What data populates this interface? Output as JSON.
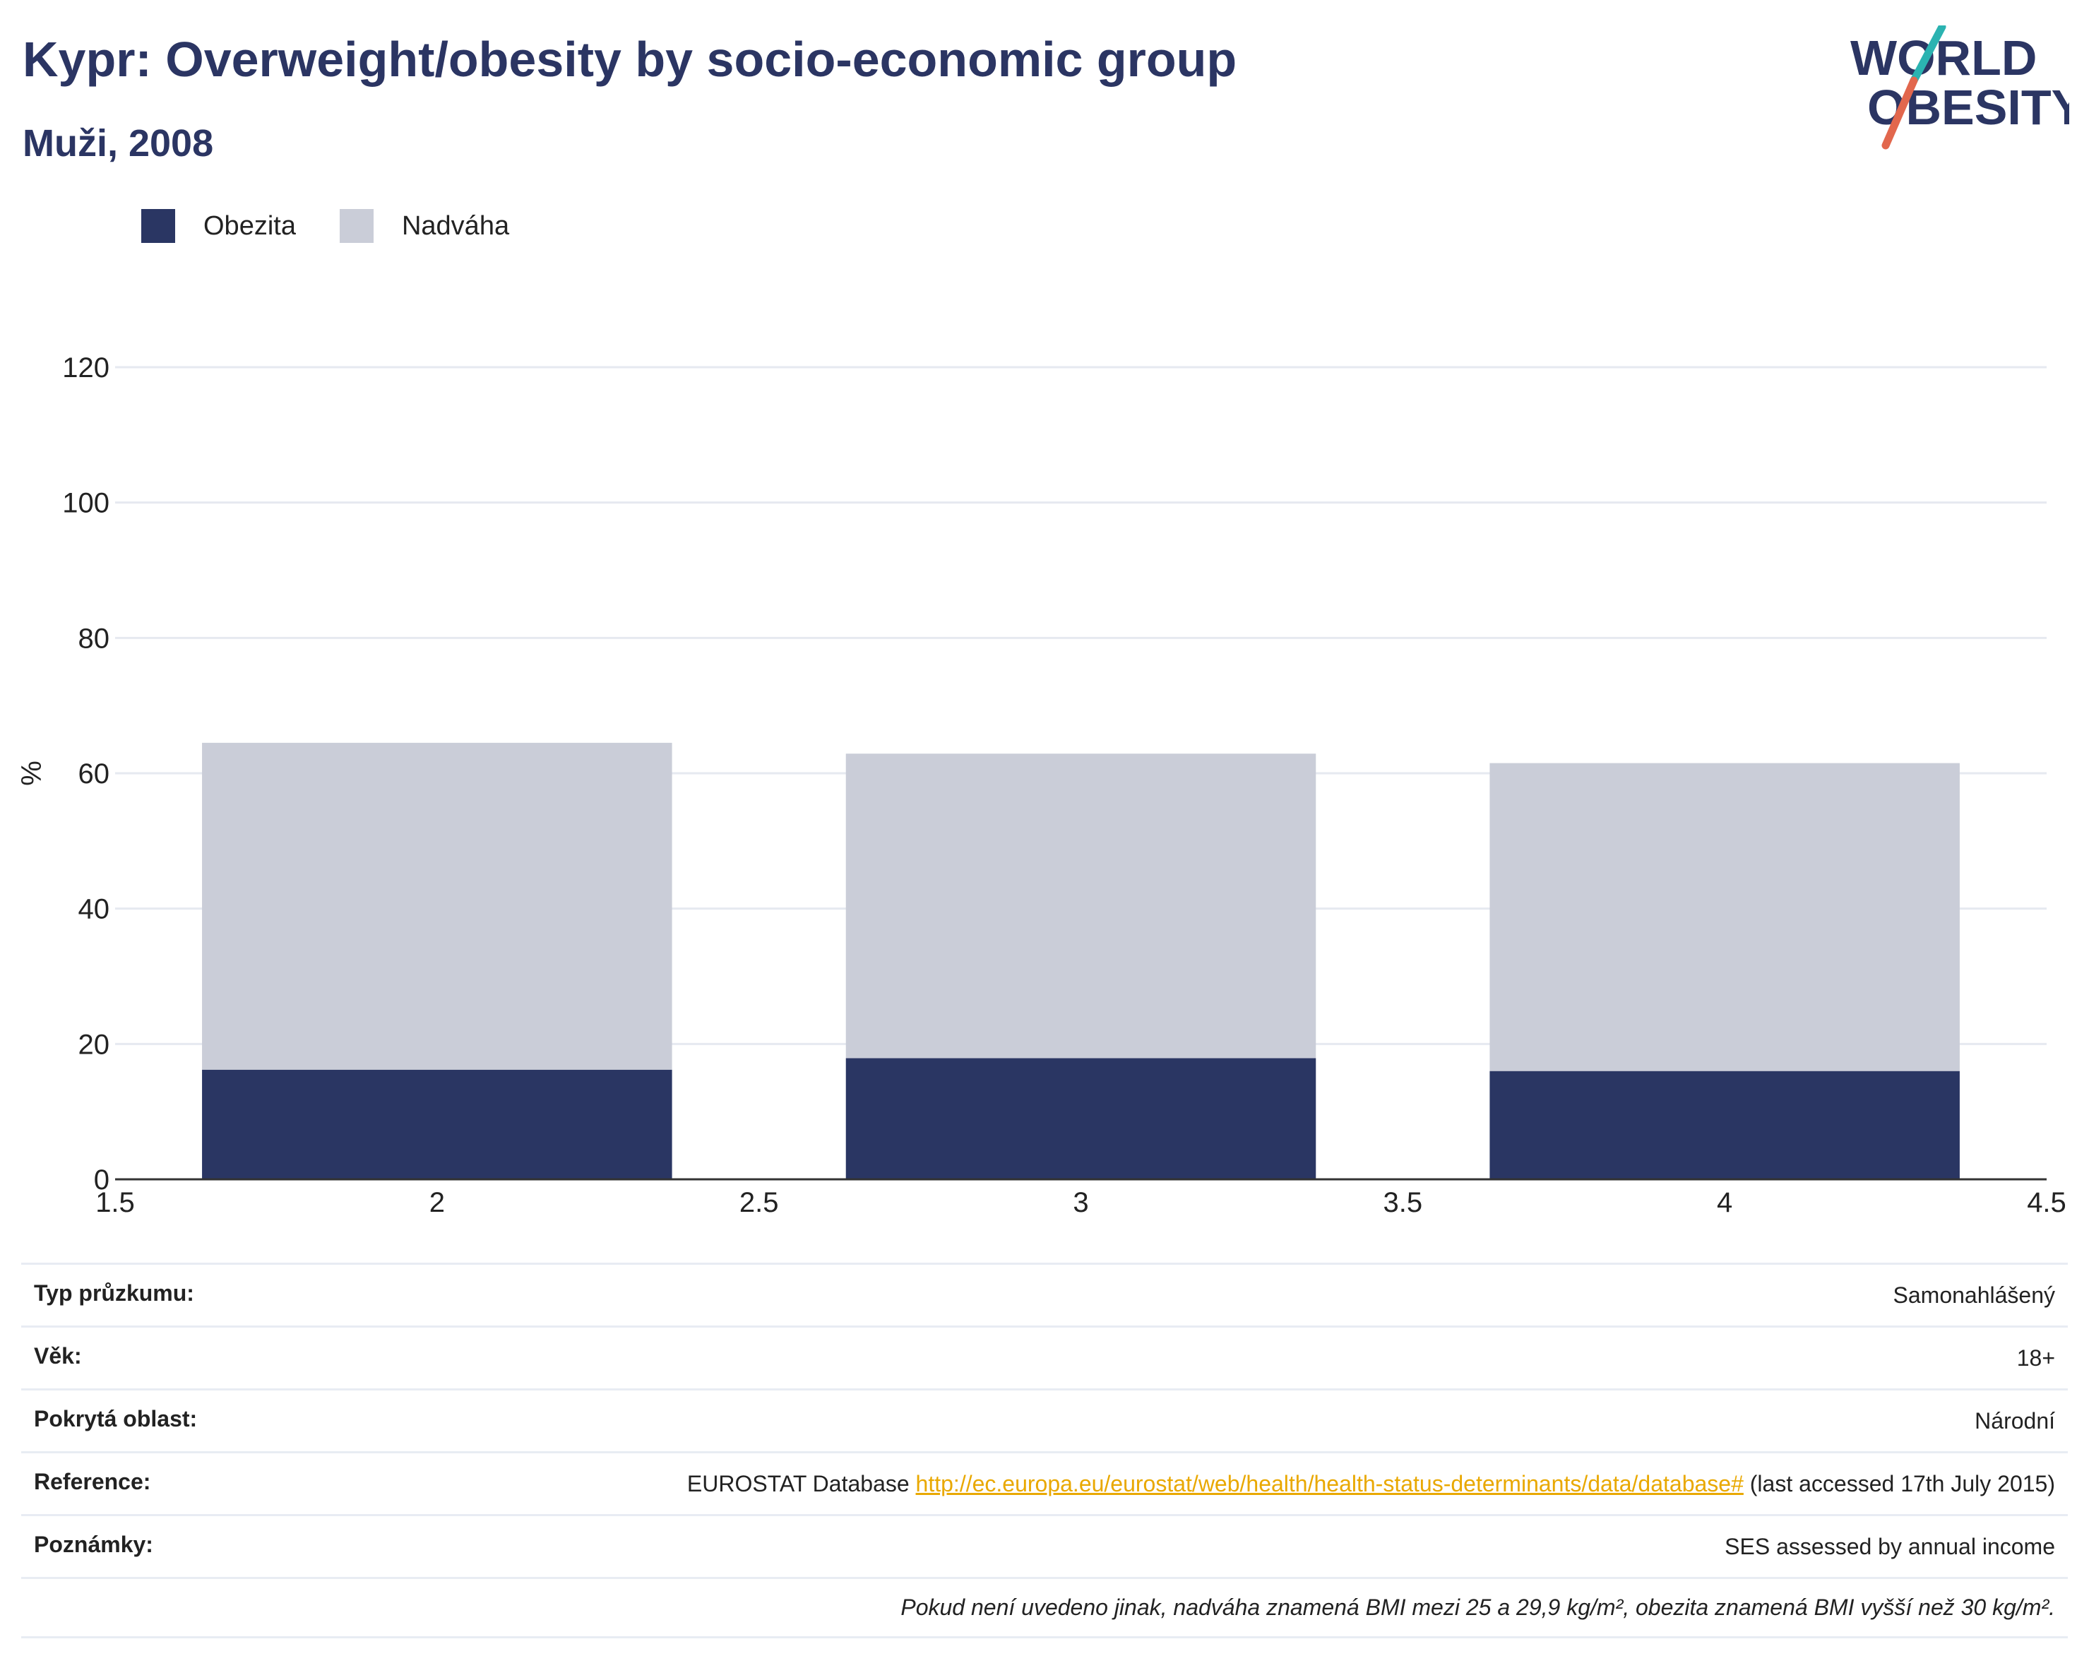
{
  "header": {
    "title": "Kypr: Overweight/obesity by socio-economic group",
    "subtitle": "Muži, 2008"
  },
  "logo": {
    "line1": "WORLD",
    "line2": "OBESITY",
    "accent_teal": "#2bb3b1",
    "accent_red": "#e2674d"
  },
  "legend": [
    {
      "label": "Obezita",
      "color": "#2a3663"
    },
    {
      "label": "Nadváha",
      "color": "#cacdd8"
    }
  ],
  "chart_data": {
    "type": "bar",
    "stacked": true,
    "x": [
      2,
      3,
      4
    ],
    "series": [
      {
        "name": "Obezita",
        "color": "#2a3663",
        "values": [
          16.2,
          17.9,
          16.0
        ]
      },
      {
        "name": "Nadváha",
        "color": "#cacdd8",
        "values": [
          48.3,
          45.0,
          45.5
        ]
      }
    ],
    "ylabel": "%",
    "xlim": [
      1.5,
      4.5
    ],
    "ylim": [
      0,
      120
    ],
    "xticks": [
      "1.5",
      "2",
      "2.5",
      "3",
      "3.5",
      "4",
      "4.5"
    ],
    "yticks": [
      "0",
      "20",
      "40",
      "60",
      "80",
      "100",
      "120"
    ],
    "grid": true,
    "legend_position": "top-left"
  },
  "info": {
    "survey_type": {
      "label": "Typ průzkumu:",
      "value": "Samonahlášený"
    },
    "age": {
      "label": "Věk:",
      "value": "18+"
    },
    "area": {
      "label": "Pokrytá oblast:",
      "value": "Národní"
    },
    "reference": {
      "label": "Reference:",
      "prefix": "EUROSTAT Database ",
      "link": "http://ec.europa.eu/eurostat/web/health/health-status-determinants/data/database#",
      "suffix": " (last accessed 17th July 2015)"
    },
    "notes": {
      "label": "Poznámky:",
      "value": "SES assessed by annual income"
    },
    "footnote": "Pokud není uvedeno jinak, nadváha znamená BMI mezi 25 a 29,9 kg/m², obezita znamená BMI vyšší než 30 kg/m²."
  }
}
